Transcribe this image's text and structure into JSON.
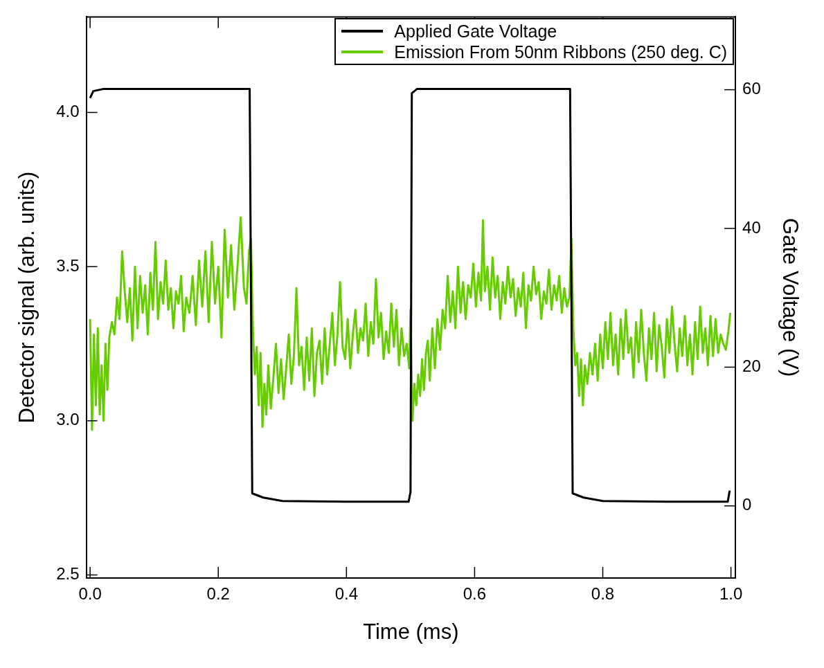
{
  "chart_data": {
    "type": "line",
    "xlabel": "Time (ms)",
    "ylabel": "Detector signal (arb. units)",
    "y2label": "Gate Voltage (V)",
    "xlim": [
      -0.006,
      1.007
    ],
    "xticks": [
      {
        "value": 0,
        "label": "0.0"
      },
      0.2,
      0.4,
      0.6,
      0.8,
      {
        "value": 1,
        "label": "1.0"
      }
    ],
    "ylim": [
      2.49,
      4.31
    ],
    "yticks": [
      2.5,
      {
        "value": 3,
        "label": "3.0"
      },
      3.5,
      {
        "value": 4,
        "label": "4.0"
      }
    ],
    "y2lim": [
      -10.4,
      70.5
    ],
    "y2ticks": [
      0,
      20,
      40,
      60
    ],
    "legend": "top right",
    "marker": "none",
    "line_style": "solid",
    "series": [
      {
        "name": "Applied Gate Voltage",
        "color": "#000000",
        "axis": "y2",
        "x": [
          0.0,
          0.005,
          0.02,
          0.249,
          0.253,
          0.27,
          0.3,
          0.4,
          0.497,
          0.5,
          0.502,
          0.51,
          0.749,
          0.753,
          0.77,
          0.8,
          0.9,
          0.995,
          0.998
        ],
        "values": [
          58.8,
          59.8,
          60.1,
          60.1,
          1.8,
          1.2,
          0.7,
          0.6,
          0.6,
          2,
          59.5,
          60.1,
          60.1,
          1.8,
          1.2,
          0.7,
          0.6,
          0.6,
          2.2
        ]
      },
      {
        "name": "Emission From 50nm Ribbons (250 deg. C)",
        "color": "#66cc00",
        "axis": "y",
        "x": [
          0.0,
          0.003,
          0.006,
          0.009,
          0.012,
          0.015,
          0.018,
          0.021,
          0.024,
          0.027,
          0.03,
          0.034,
          0.038,
          0.042,
          0.046,
          0.05,
          0.054,
          0.058,
          0.062,
          0.066,
          0.07,
          0.074,
          0.078,
          0.082,
          0.086,
          0.09,
          0.094,
          0.098,
          0.102,
          0.106,
          0.11,
          0.114,
          0.118,
          0.122,
          0.126,
          0.13,
          0.134,
          0.138,
          0.142,
          0.146,
          0.15,
          0.155,
          0.16,
          0.165,
          0.17,
          0.175,
          0.18,
          0.185,
          0.19,
          0.195,
          0.2,
          0.205,
          0.21,
          0.215,
          0.22,
          0.225,
          0.23,
          0.235,
          0.24,
          0.244,
          0.248,
          0.251,
          0.254,
          0.257,
          0.26,
          0.263,
          0.266,
          0.269,
          0.272,
          0.275,
          0.278,
          0.282,
          0.286,
          0.29,
          0.294,
          0.298,
          0.302,
          0.306,
          0.31,
          0.314,
          0.318,
          0.322,
          0.326,
          0.33,
          0.334,
          0.338,
          0.342,
          0.346,
          0.35,
          0.354,
          0.358,
          0.362,
          0.366,
          0.37,
          0.374,
          0.378,
          0.382,
          0.386,
          0.39,
          0.394,
          0.398,
          0.402,
          0.406,
          0.41,
          0.414,
          0.418,
          0.422,
          0.426,
          0.43,
          0.434,
          0.438,
          0.442,
          0.446,
          0.45,
          0.454,
          0.458,
          0.462,
          0.466,
          0.47,
          0.474,
          0.478,
          0.482,
          0.486,
          0.49,
          0.494,
          0.498,
          0.5,
          0.503,
          0.506,
          0.509,
          0.512,
          0.515,
          0.518,
          0.521,
          0.524,
          0.527,
          0.53,
          0.534,
          0.538,
          0.542,
          0.546,
          0.55,
          0.554,
          0.558,
          0.562,
          0.566,
          0.57,
          0.574,
          0.578,
          0.582,
          0.586,
          0.59,
          0.594,
          0.598,
          0.602,
          0.606,
          0.61,
          0.613,
          0.616,
          0.62,
          0.624,
          0.628,
          0.632,
          0.636,
          0.64,
          0.644,
          0.648,
          0.652,
          0.656,
          0.66,
          0.664,
          0.668,
          0.672,
          0.676,
          0.68,
          0.684,
          0.688,
          0.692,
          0.696,
          0.7,
          0.704,
          0.708,
          0.712,
          0.716,
          0.72,
          0.724,
          0.728,
          0.732,
          0.736,
          0.74,
          0.744,
          0.748,
          0.751,
          0.754,
          0.757,
          0.76,
          0.763,
          0.766,
          0.769,
          0.772,
          0.776,
          0.78,
          0.784,
          0.788,
          0.792,
          0.796,
          0.8,
          0.804,
          0.808,
          0.812,
          0.816,
          0.82,
          0.824,
          0.828,
          0.832,
          0.836,
          0.84,
          0.844,
          0.848,
          0.852,
          0.856,
          0.86,
          0.864,
          0.868,
          0.872,
          0.876,
          0.88,
          0.884,
          0.888,
          0.892,
          0.896,
          0.9,
          0.904,
          0.908,
          0.912,
          0.916,
          0.92,
          0.924,
          0.928,
          0.932,
          0.936,
          0.94,
          0.944,
          0.948,
          0.952,
          0.956,
          0.96,
          0.964,
          0.968,
          0.972,
          0.976,
          0.98,
          0.984,
          0.988,
          0.992,
          0.996,
          0.999
        ],
        "values": [
          3.33,
          2.97,
          3.28,
          3.05,
          3.3,
          3.02,
          3.18,
          3.0,
          3.25,
          3.1,
          3.27,
          3.32,
          3.28,
          3.4,
          3.33,
          3.55,
          3.42,
          3.32,
          3.43,
          3.26,
          3.5,
          3.3,
          3.47,
          3.35,
          3.44,
          3.28,
          3.48,
          3.36,
          3.58,
          3.33,
          3.45,
          3.38,
          3.52,
          3.36,
          3.43,
          3.3,
          3.42,
          3.38,
          3.47,
          3.29,
          3.4,
          3.35,
          3.47,
          3.31,
          3.52,
          3.37,
          3.55,
          3.32,
          3.58,
          3.38,
          3.5,
          3.27,
          3.62,
          3.4,
          3.57,
          3.36,
          3.5,
          3.66,
          3.43,
          3.38,
          3.55,
          3.59,
          3.3,
          3.15,
          3.24,
          3.05,
          3.22,
          2.98,
          3.12,
          3.02,
          3.18,
          3.04,
          3.14,
          3.25,
          3.09,
          3.2,
          3.07,
          3.17,
          3.28,
          3.12,
          3.21,
          3.43,
          3.18,
          3.24,
          3.1,
          3.27,
          3.13,
          3.3,
          3.08,
          3.22,
          3.26,
          3.12,
          3.3,
          3.15,
          3.25,
          3.35,
          3.18,
          3.28,
          3.45,
          3.24,
          3.2,
          3.33,
          3.17,
          3.28,
          3.36,
          3.22,
          3.3,
          3.26,
          3.38,
          3.21,
          3.32,
          3.25,
          3.46,
          3.27,
          3.35,
          3.2,
          3.29,
          3.22,
          3.38,
          3.24,
          3.36,
          3.18,
          3.3,
          3.21,
          3.25,
          3.17,
          3.36,
          3.0,
          3.12,
          3.05,
          3.15,
          3.08,
          3.2,
          3.1,
          3.22,
          3.26,
          3.13,
          3.3,
          3.17,
          3.33,
          3.23,
          3.36,
          3.3,
          3.47,
          3.32,
          3.42,
          3.3,
          3.5,
          3.35,
          3.45,
          3.33,
          3.44,
          3.4,
          3.51,
          3.37,
          3.48,
          3.39,
          3.65,
          3.42,
          3.5,
          3.36,
          3.53,
          3.4,
          3.47,
          3.33,
          3.45,
          3.38,
          3.5,
          3.4,
          3.46,
          3.34,
          3.43,
          3.37,
          3.48,
          3.3,
          3.44,
          3.39,
          3.5,
          3.41,
          3.45,
          3.33,
          3.42,
          3.38,
          3.49,
          3.36,
          3.44,
          3.39,
          3.47,
          3.35,
          3.43,
          3.37,
          3.4,
          3.59,
          3.3,
          3.18,
          3.22,
          3.08,
          3.2,
          3.05,
          3.18,
          3.12,
          3.22,
          3.15,
          3.25,
          3.13,
          3.28,
          3.17,
          3.32,
          3.2,
          3.35,
          3.18,
          3.28,
          3.15,
          3.33,
          3.2,
          3.36,
          3.22,
          3.27,
          3.14,
          3.32,
          3.19,
          3.36,
          3.22,
          3.13,
          3.3,
          3.2,
          3.35,
          3.16,
          3.31,
          3.24,
          3.14,
          3.33,
          3.22,
          3.37,
          3.25,
          3.16,
          3.3,
          3.21,
          3.34,
          3.18,
          3.28,
          3.15,
          3.32,
          3.2,
          3.37,
          3.22,
          3.3,
          3.18,
          3.34,
          3.21,
          3.33,
          3.22,
          3.28,
          3.25,
          3.23,
          3.29,
          3.35
        ]
      }
    ]
  }
}
